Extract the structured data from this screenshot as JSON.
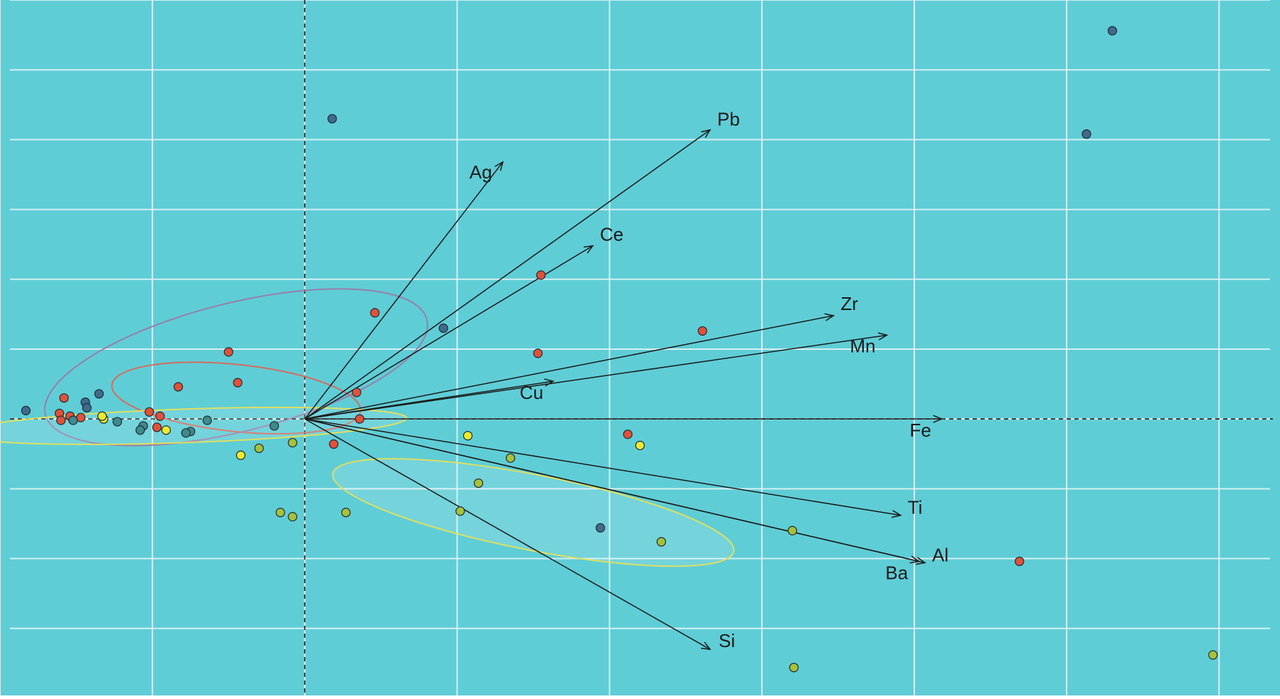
{
  "chart_data": {
    "type": "scatter",
    "title": "",
    "xlabel": "",
    "ylabel": "",
    "xlim": [
      -2.0,
      6.4
    ],
    "ylim": [
      -1.98,
      3.0
    ],
    "grid": true,
    "background": "#5fcdd6",
    "colors": {
      "grid": "#e8f6f7",
      "axis_line": "#1a1a1a",
      "arrow": "#1a1a1a",
      "label": "#1a1a1a",
      "red": "#e0513a",
      "blue": "#3f6a8c",
      "yellow": "#ecec2c",
      "olive": "#a4c23a",
      "teal": "#3f8a8c",
      "ellipse_red": "#d9665a",
      "ellipse_purple": "#9a7aa6",
      "ellipse_yellow": "#e6e05a"
    },
    "loadings": [
      {
        "name": "Pb",
        "x": 2.66,
        "y": 2.07
      },
      {
        "name": "Ag",
        "x": 1.3,
        "y": 1.84
      },
      {
        "name": "Ce",
        "x": 1.89,
        "y": 1.24
      },
      {
        "name": "Zr",
        "x": 3.47,
        "y": 0.74
      },
      {
        "name": "Mn",
        "x": 3.82,
        "y": 0.6
      },
      {
        "name": "Cu",
        "x": 1.63,
        "y": 0.27
      },
      {
        "name": "Fe",
        "x": 4.18,
        "y": 0.0
      },
      {
        "name": "Ti",
        "x": 3.91,
        "y": -0.69
      },
      {
        "name": "Al",
        "x": 4.07,
        "y": -1.03
      },
      {
        "name": "Ba",
        "x": 4.03,
        "y": -1.02
      },
      {
        "name": "Si",
        "x": 2.66,
        "y": -1.65
      }
    ],
    "ellipses": [
      {
        "group": "red",
        "cx": -0.45,
        "cy": 0.15,
        "rx": 0.82,
        "ry": 0.24,
        "angle": -6,
        "fill": false
      },
      {
        "group": "purple",
        "cx": -0.45,
        "cy": 0.37,
        "rx": 1.29,
        "ry": 0.46,
        "angle": 14,
        "fill": false
      },
      {
        "group": "yellow",
        "cx": -0.8,
        "cy": -0.05,
        "rx": 1.47,
        "ry": 0.12,
        "angle": 2,
        "fill": true
      },
      {
        "group": "olive",
        "cx": 1.5,
        "cy": -0.67,
        "rx": 1.34,
        "ry": 0.27,
        "angle": -11,
        "fill": true
      }
    ],
    "points": [
      {
        "x": 5.3,
        "y": 2.78,
        "g": "blue"
      },
      {
        "x": 5.13,
        "y": 2.04,
        "g": "blue"
      },
      {
        "x": 0.18,
        "y": 2.15,
        "g": "blue"
      },
      {
        "x": 0.91,
        "y": 0.65,
        "g": "blue"
      },
      {
        "x": 1.94,
        "y": -0.78,
        "g": "blue"
      },
      {
        "x": -1.83,
        "y": 0.06,
        "g": "blue"
      },
      {
        "x": -1.35,
        "y": 0.18,
        "g": "blue"
      },
      {
        "x": -1.44,
        "y": 0.12,
        "g": "blue"
      },
      {
        "x": -1.43,
        "y": 0.08,
        "g": "blue"
      },
      {
        "x": 1.55,
        "y": 1.03,
        "g": "red"
      },
      {
        "x": 0.46,
        "y": 0.76,
        "g": "red"
      },
      {
        "x": 2.61,
        "y": 0.63,
        "g": "red"
      },
      {
        "x": 1.53,
        "y": 0.47,
        "g": "red"
      },
      {
        "x": -0.5,
        "y": 0.48,
        "g": "red"
      },
      {
        "x": -0.44,
        "y": 0.26,
        "g": "red"
      },
      {
        "x": -0.83,
        "y": 0.23,
        "g": "red"
      },
      {
        "x": 0.34,
        "y": 0.19,
        "g": "red"
      },
      {
        "x": 0.36,
        "y": 0.0,
        "g": "red"
      },
      {
        "x": 2.12,
        "y": -0.11,
        "g": "red"
      },
      {
        "x": 0.19,
        "y": -0.18,
        "g": "red"
      },
      {
        "x": 4.69,
        "y": -1.02,
        "g": "red"
      },
      {
        "x": -1.58,
        "y": 0.15,
        "g": "red"
      },
      {
        "x": -1.61,
        "y": 0.04,
        "g": "red"
      },
      {
        "x": -1.54,
        "y": 0.02,
        "g": "red"
      },
      {
        "x": -1.47,
        "y": 0.01,
        "g": "red"
      },
      {
        "x": -1.6,
        "y": -0.01,
        "g": "red"
      },
      {
        "x": -1.02,
        "y": 0.05,
        "g": "red"
      },
      {
        "x": -0.95,
        "y": 0.02,
        "g": "red"
      },
      {
        "x": -0.97,
        "y": -0.06,
        "g": "red"
      },
      {
        "x": -0.2,
        "y": -0.05,
        "g": "teal"
      },
      {
        "x": -0.64,
        "y": -0.01,
        "g": "teal"
      },
      {
        "x": -1.23,
        "y": -0.02,
        "g": "teal"
      },
      {
        "x": -1.06,
        "y": -0.05,
        "g": "teal"
      },
      {
        "x": -1.08,
        "y": -0.08,
        "g": "teal"
      },
      {
        "x": -0.75,
        "y": -0.09,
        "g": "teal"
      },
      {
        "x": -0.78,
        "y": -0.1,
        "g": "teal"
      },
      {
        "x": -1.52,
        "y": -0.01,
        "g": "teal"
      },
      {
        "x": 1.07,
        "y": -0.12,
        "g": "yellow"
      },
      {
        "x": 2.2,
        "y": -0.19,
        "g": "yellow"
      },
      {
        "x": -0.42,
        "y": -0.26,
        "g": "yellow"
      },
      {
        "x": -0.91,
        "y": -0.08,
        "g": "yellow"
      },
      {
        "x": -1.32,
        "y": 0.0,
        "g": "yellow"
      },
      {
        "x": -1.33,
        "y": 0.02,
        "g": "yellow"
      },
      {
        "x": 1.35,
        "y": -0.28,
        "g": "olive"
      },
      {
        "x": 1.14,
        "y": -0.46,
        "g": "olive"
      },
      {
        "x": 1.02,
        "y": -0.66,
        "g": "olive"
      },
      {
        "x": 0.27,
        "y": -0.67,
        "g": "olive"
      },
      {
        "x": -0.08,
        "y": -0.17,
        "g": "olive"
      },
      {
        "x": -0.3,
        "y": -0.21,
        "g": "olive"
      },
      {
        "x": -0.16,
        "y": -0.67,
        "g": "olive"
      },
      {
        "x": -0.08,
        "y": -0.7,
        "g": "olive"
      },
      {
        "x": 2.34,
        "y": -0.88,
        "g": "olive"
      },
      {
        "x": 3.2,
        "y": -0.8,
        "g": "olive"
      },
      {
        "x": 3.21,
        "y": -1.78,
        "g": "olive"
      },
      {
        "x": 5.96,
        "y": -1.69,
        "g": "olive"
      }
    ]
  }
}
